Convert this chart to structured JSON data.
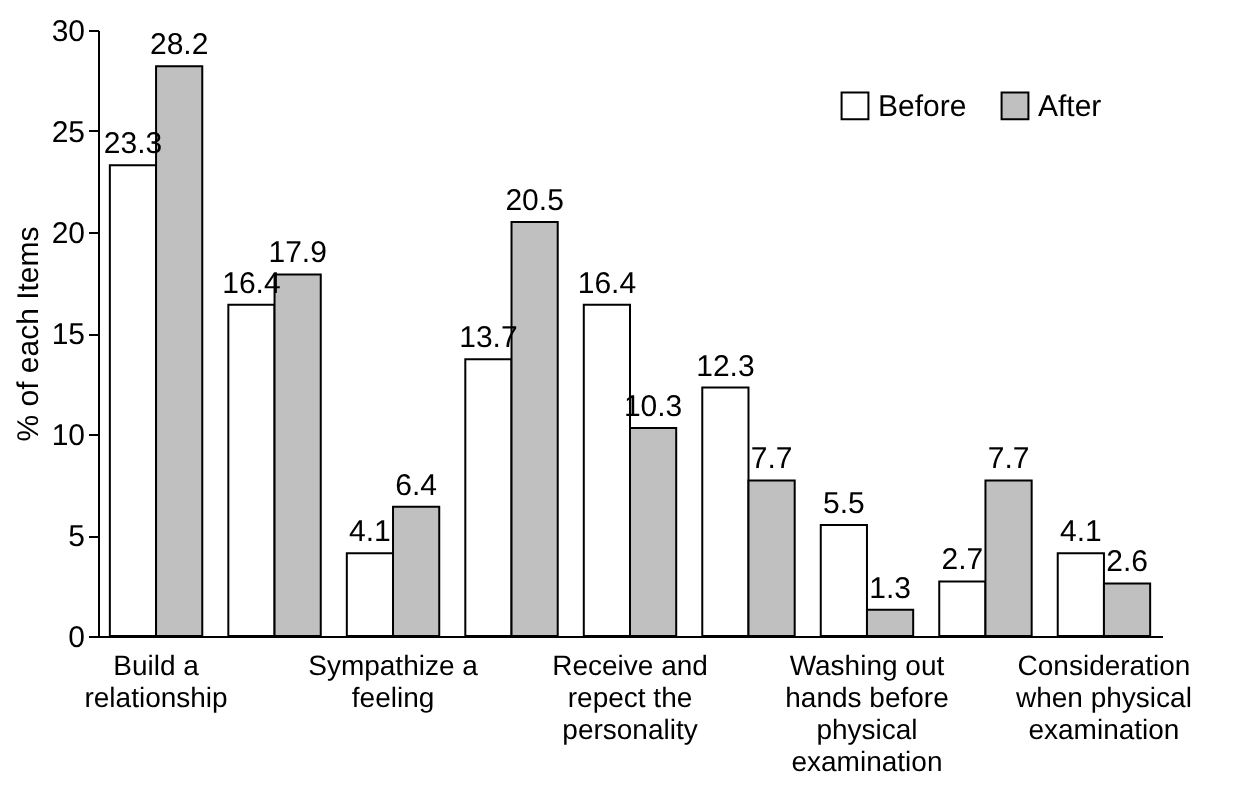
{
  "chart_data": {
    "type": "bar",
    "ylabel": "% of each Items",
    "categories": [
      "Build a relationship",
      null,
      "Sympathize a feeling",
      null,
      "Receive and repect the personality",
      null,
      "Washing out hands before physical examination",
      null,
      "Consideration when physical examination"
    ],
    "series": [
      {
        "name": "Before",
        "color": "#ffffff",
        "values": [
          23.3,
          16.4,
          4.1,
          13.7,
          16.4,
          12.3,
          5.5,
          2.7,
          4.1
        ]
      },
      {
        "name": "After",
        "color": "#c0c0c0",
        "values": [
          28.2,
          17.9,
          6.4,
          20.5,
          10.3,
          7.7,
          1.3,
          7.7,
          2.6
        ]
      }
    ],
    "ylim": [
      0,
      30
    ],
    "yticks": [
      0,
      5,
      10,
      15,
      20,
      25,
      30
    ],
    "grid": false,
    "legend": "top right",
    "data_labels": true
  }
}
